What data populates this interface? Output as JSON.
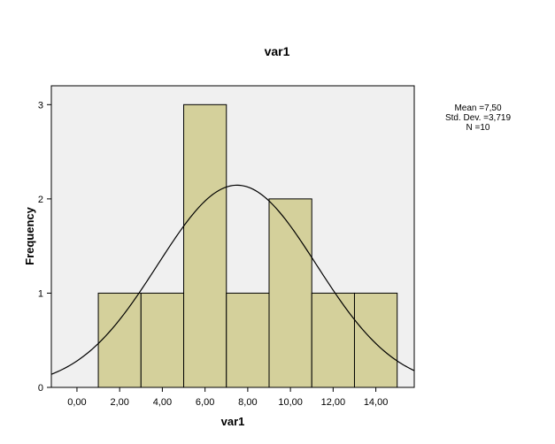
{
  "chart_data": {
    "type": "bar",
    "title": "var1",
    "xlabel": "var1",
    "ylabel": "Frequency",
    "xlim": [
      -1.2,
      15.8
    ],
    "ylim": [
      0,
      3.2
    ],
    "x_ticks": [
      0,
      2,
      4,
      6,
      8,
      10,
      12,
      14
    ],
    "x_tick_labels": [
      "0,00",
      "2,00",
      "4,00",
      "6,00",
      "8,00",
      "10,00",
      "12,00",
      "14,00"
    ],
    "y_ticks": [
      0,
      1,
      2,
      3
    ],
    "y_tick_labels": [
      "0",
      "1",
      "2",
      "3"
    ],
    "bins": [
      {
        "from": 1,
        "to": 3,
        "count": 1
      },
      {
        "from": 3,
        "to": 5,
        "count": 1
      },
      {
        "from": 5,
        "to": 7,
        "count": 3
      },
      {
        "from": 7,
        "to": 9,
        "count": 1
      },
      {
        "from": 9,
        "to": 11,
        "count": 2
      },
      {
        "from": 11,
        "to": 13,
        "count": 1
      },
      {
        "from": 13,
        "to": 15,
        "count": 1
      }
    ],
    "normal_curve": {
      "mean": 7.5,
      "std_dev": 3.719,
      "n": 10,
      "bin_width": 2
    },
    "grid": false,
    "bar_color": "#d4d09b",
    "bar_edge_color": "#000000",
    "plot_background": "#f0f0f0"
  },
  "stats": {
    "mean": "Mean =7,50",
    "std_dev": "Std. Dev. =3,719",
    "n": "N =10"
  }
}
